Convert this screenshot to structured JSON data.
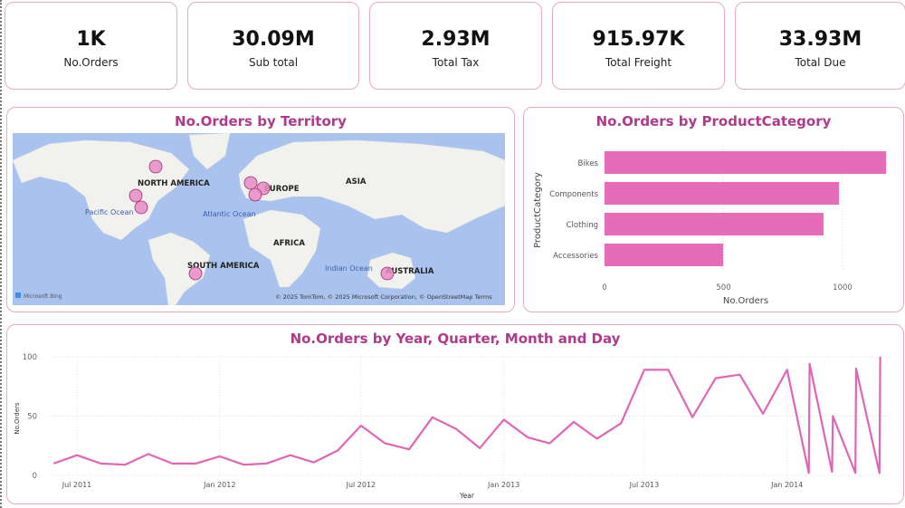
{
  "kpis": [
    {
      "value": "1K",
      "label": "No.Orders"
    },
    {
      "value": "30.09M",
      "label": "Sub total"
    },
    {
      "value": "2.93M",
      "label": "Total Tax"
    },
    {
      "value": "915.97K",
      "label": "Total Freight"
    },
    {
      "value": "33.93M",
      "label": "Total Due"
    }
  ],
  "map": {
    "title": "No.Orders by Territory",
    "labels": {
      "north_america": "NORTH AMERICA",
      "europe": "EUROPE",
      "asia": "ASIA",
      "africa": "AFRICA",
      "south_america": "SOUTH AMERICA",
      "australia": "AUSTRALIA",
      "pacific": "Pacific Ocean",
      "atlantic": "Atlantic Ocean",
      "indian": "Indian Ocean"
    },
    "attribution": "© 2025 TomTom, © 2025 Microsoft Corporation, © OpenStreetMap  Terms",
    "logo": "Microsoft Bing",
    "bubble_color": "#e88cc8"
  },
  "chart_data": [
    {
      "type": "bar",
      "title": "No.Orders by ProductCategory",
      "xlabel": "No.Orders",
      "ylabel": "ProductCategory",
      "categories": [
        "Bikes",
        "Components",
        "Clothing",
        "Accessories"
      ],
      "values": [
        1183,
        985,
        920,
        498
      ],
      "xlim": [
        0,
        1200
      ],
      "xticks": [
        "0",
        "500",
        "1000"
      ],
      "color": "#e66bb8"
    },
    {
      "type": "line",
      "title": "No.Orders by Year, Quarter, Month and Day",
      "xlabel": "Year",
      "ylabel": "No.Orders",
      "ylim": [
        0,
        100
      ],
      "yticks": [
        "0",
        "50",
        "100"
      ],
      "xticks": [
        {
          "date": "2011-07-01",
          "label": "Jul 2011"
        },
        {
          "date": "2012-01-01",
          "label": "Jan 2012"
        },
        {
          "date": "2012-07-01",
          "label": "Jul 2012"
        },
        {
          "date": "2013-01-01",
          "label": "Jan 2013"
        },
        {
          "date": "2013-07-01",
          "label": "Jul 2013"
        },
        {
          "date": "2014-01-01",
          "label": "Jan 2014"
        }
      ],
      "color": "#e066b5",
      "x": [
        "2011-06-01",
        "2011-07-01",
        "2011-08-01",
        "2011-09-01",
        "2011-10-01",
        "2011-11-01",
        "2011-12-01",
        "2012-01-01",
        "2012-02-01",
        "2012-03-01",
        "2012-04-01",
        "2012-05-01",
        "2012-06-01",
        "2012-07-01",
        "2012-08-01",
        "2012-09-01",
        "2012-10-01",
        "2012-11-01",
        "2012-12-01",
        "2013-01-01",
        "2013-02-01",
        "2013-03-01",
        "2013-04-01",
        "2013-05-01",
        "2013-06-01",
        "2013-07-01",
        "2013-08-01",
        "2013-09-01",
        "2013-10-01",
        "2013-11-01",
        "2013-12-01",
        "2014-01-01",
        "2014-01-29",
        "2014-01-30",
        "2014-02-28",
        "2014-03-01",
        "2014-03-30",
        "2014-03-31",
        "2014-04-30",
        "2014-05-01"
      ],
      "values": [
        10,
        17,
        10,
        9,
        18,
        10,
        10,
        16,
        9,
        10,
        17,
        11,
        21,
        42,
        27,
        22,
        49,
        39,
        23,
        47,
        32,
        27,
        45,
        31,
        44,
        89,
        89,
        49,
        82,
        85,
        52,
        89,
        2,
        94,
        3,
        50,
        2,
        90,
        2,
        100
      ]
    }
  ]
}
